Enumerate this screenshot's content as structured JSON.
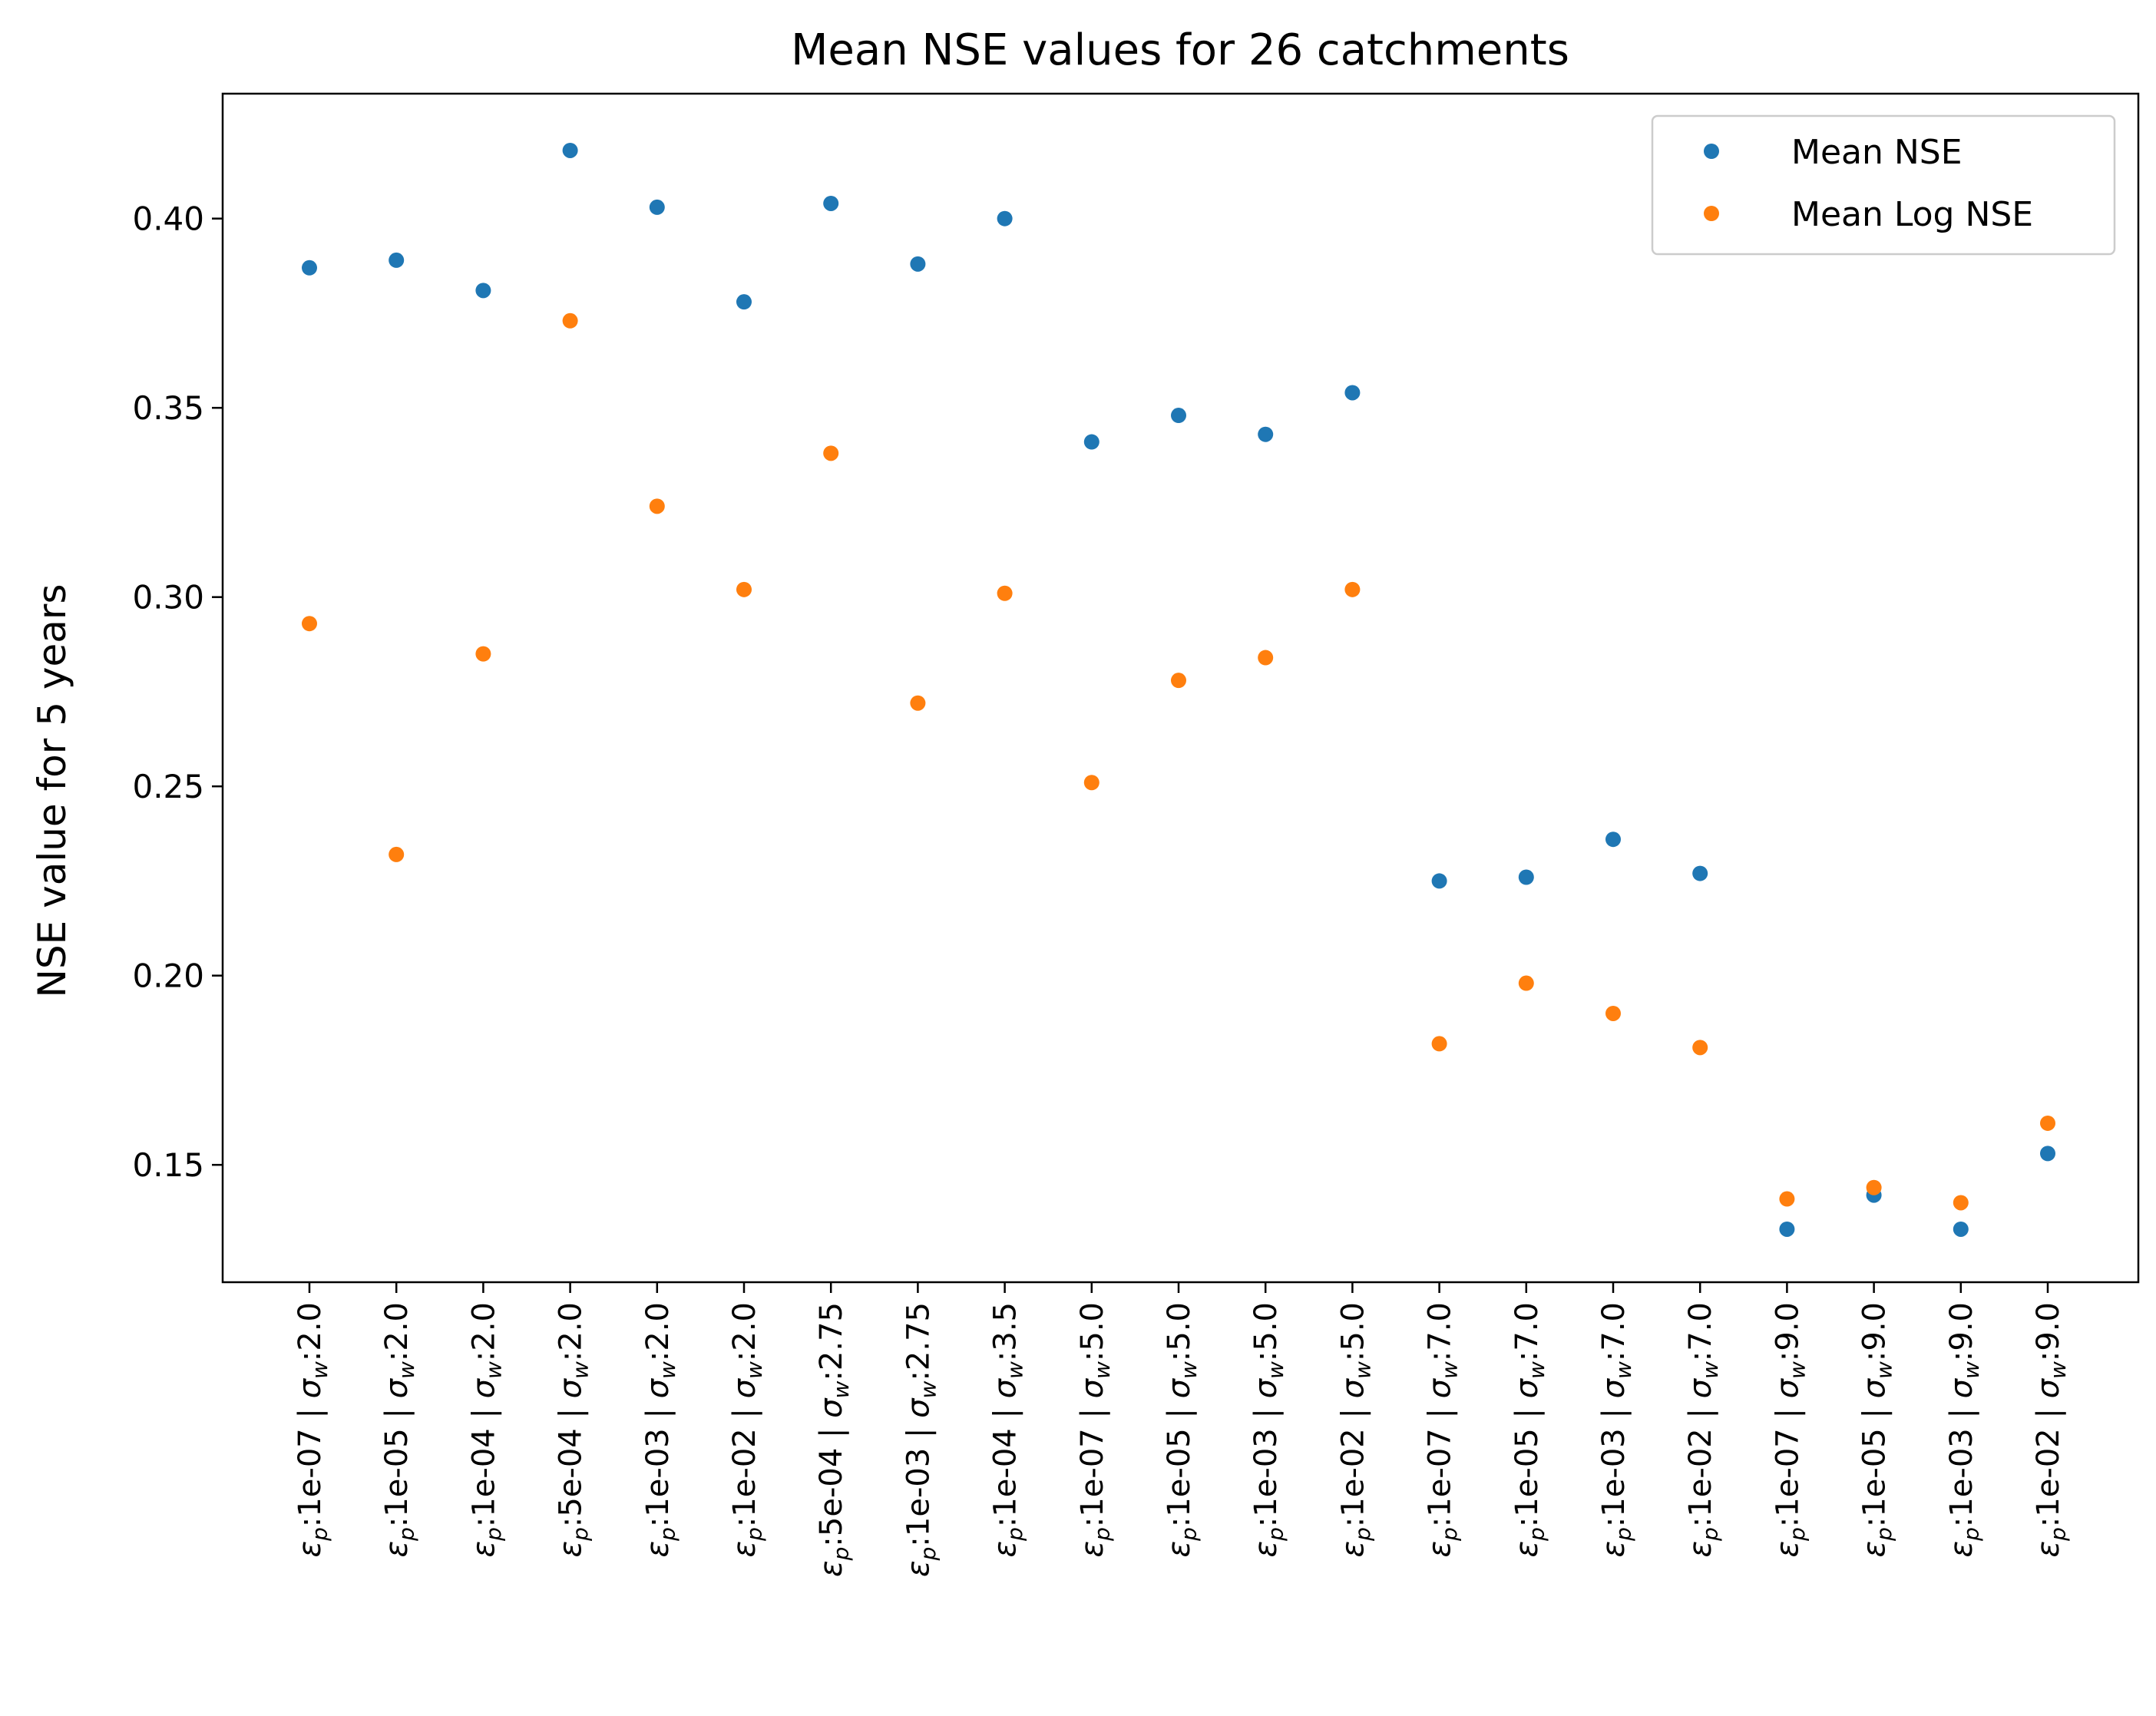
{
  "chart_data": {
    "type": "scatter",
    "title": "Mean NSE values for 26 catchments",
    "ylabel": "NSE value for 5 years",
    "xlabel": "",
    "ylim": [
      0.119,
      0.433
    ],
    "yticks": [
      0.15,
      0.2,
      0.25,
      0.3,
      0.35,
      0.4
    ],
    "ytick_labels": [
      "0.15",
      "0.20",
      "0.25",
      "0.30",
      "0.35",
      "0.40"
    ],
    "legend_position": "top-right",
    "grid": false,
    "categories": [
      {
        "eps": "1e-07",
        "sigma": "2.0"
      },
      {
        "eps": "1e-05",
        "sigma": "2.0"
      },
      {
        "eps": "1e-04",
        "sigma": "2.0"
      },
      {
        "eps": "5e-04",
        "sigma": "2.0"
      },
      {
        "eps": "1e-03",
        "sigma": "2.0"
      },
      {
        "eps": "1e-02",
        "sigma": "2.0"
      },
      {
        "eps": "5e-04",
        "sigma": "2.75"
      },
      {
        "eps": "1e-03",
        "sigma": "2.75"
      },
      {
        "eps": "1e-04",
        "sigma": "3.5"
      },
      {
        "eps": "1e-07",
        "sigma": "5.0"
      },
      {
        "eps": "1e-05",
        "sigma": "5.0"
      },
      {
        "eps": "1e-03",
        "sigma": "5.0"
      },
      {
        "eps": "1e-02",
        "sigma": "5.0"
      },
      {
        "eps": "1e-07",
        "sigma": "7.0"
      },
      {
        "eps": "1e-05",
        "sigma": "7.0"
      },
      {
        "eps": "1e-03",
        "sigma": "7.0"
      },
      {
        "eps": "1e-02",
        "sigma": "7.0"
      },
      {
        "eps": "1e-07",
        "sigma": "9.0"
      },
      {
        "eps": "1e-05",
        "sigma": "9.0"
      },
      {
        "eps": "1e-03",
        "sigma": "9.0"
      },
      {
        "eps": "1e-02",
        "sigma": "9.0"
      }
    ],
    "series": [
      {
        "name": "Mean NSE",
        "color": "#1f77b4",
        "values": [
          0.387,
          0.389,
          0.381,
          0.418,
          0.403,
          0.378,
          0.404,
          0.388,
          0.4,
          0.341,
          0.348,
          0.343,
          0.354,
          0.225,
          0.226,
          0.236,
          0.227,
          0.133,
          0.142,
          0.133,
          0.153
        ]
      },
      {
        "name": "Mean Log NSE",
        "color": "#ff7f0e",
        "values": [
          0.293,
          0.232,
          0.285,
          0.373,
          0.324,
          0.302,
          0.338,
          0.272,
          0.301,
          0.251,
          0.278,
          0.284,
          0.302,
          0.182,
          0.198,
          0.19,
          0.181,
          0.141,
          0.144,
          0.14,
          0.161
        ]
      }
    ]
  }
}
